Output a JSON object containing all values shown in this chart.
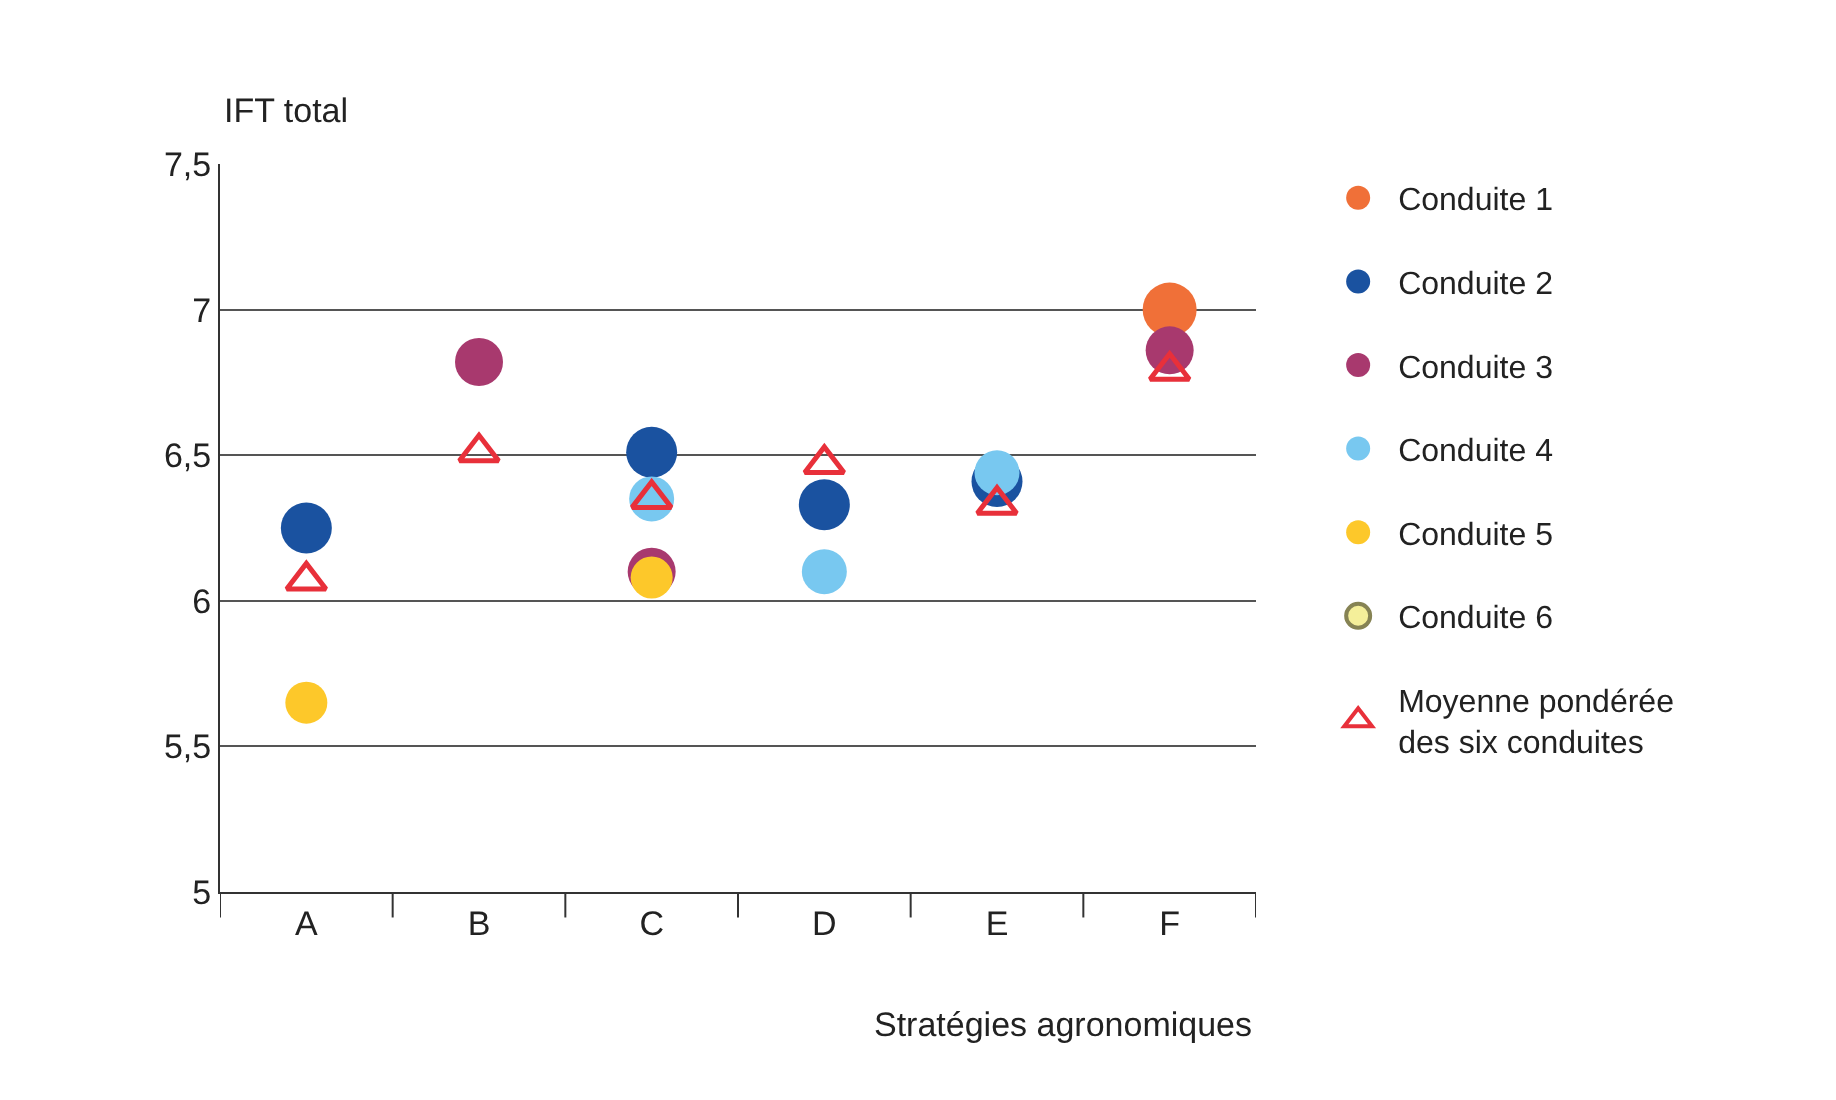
{
  "chart_data": {
    "type": "scatter",
    "xlabel": "Stratégies agronomiques",
    "ylabel": "IFT total",
    "categories": [
      "A",
      "B",
      "C",
      "D",
      "E",
      "F"
    ],
    "series": [
      {
        "name": "Conduite 1",
        "color": "#f07038",
        "marker": "circle",
        "values": [
          null,
          null,
          null,
          null,
          null,
          7.0
        ]
      },
      {
        "name": "Conduite 2",
        "color": "#1a52a0",
        "marker": "circle",
        "values": [
          6.25,
          null,
          6.51,
          6.33,
          6.41,
          null
        ]
      },
      {
        "name": "Conduite 3",
        "color": "#a8396e",
        "marker": "circle",
        "values": [
          null,
          6.82,
          6.1,
          null,
          null,
          6.86
        ]
      },
      {
        "name": "Conduite 4",
        "color": "#78c8f0",
        "marker": "circle",
        "values": [
          null,
          null,
          6.35,
          6.1,
          6.44,
          null
        ]
      },
      {
        "name": "Conduite 5",
        "color": "#fdc82a",
        "marker": "circle",
        "values": [
          5.65,
          null,
          6.08,
          null,
          null,
          null
        ]
      },
      {
        "name": "Conduite 6",
        "color": "#f5ef9a",
        "marker": "circle",
        "values": [
          null,
          null,
          null,
          null,
          null,
          null
        ]
      },
      {
        "name": "Moyenne pondérée des six conduites",
        "color": "#e8303a",
        "marker": "triangle",
        "values": [
          6.07,
          6.51,
          6.35,
          6.47,
          6.33,
          6.79
        ]
      }
    ],
    "ylim": [
      5,
      7.5
    ],
    "yticks": [
      {
        "value": 5,
        "label": "5"
      },
      {
        "value": 5.5,
        "label": "5,5"
      },
      {
        "value": 6,
        "label": "6"
      },
      {
        "value": 6.5,
        "label": "6,5"
      },
      {
        "value": 7,
        "label": "7"
      },
      {
        "value": 7.5,
        "label": "7,5"
      }
    ],
    "grid": "y",
    "legend": "right"
  }
}
